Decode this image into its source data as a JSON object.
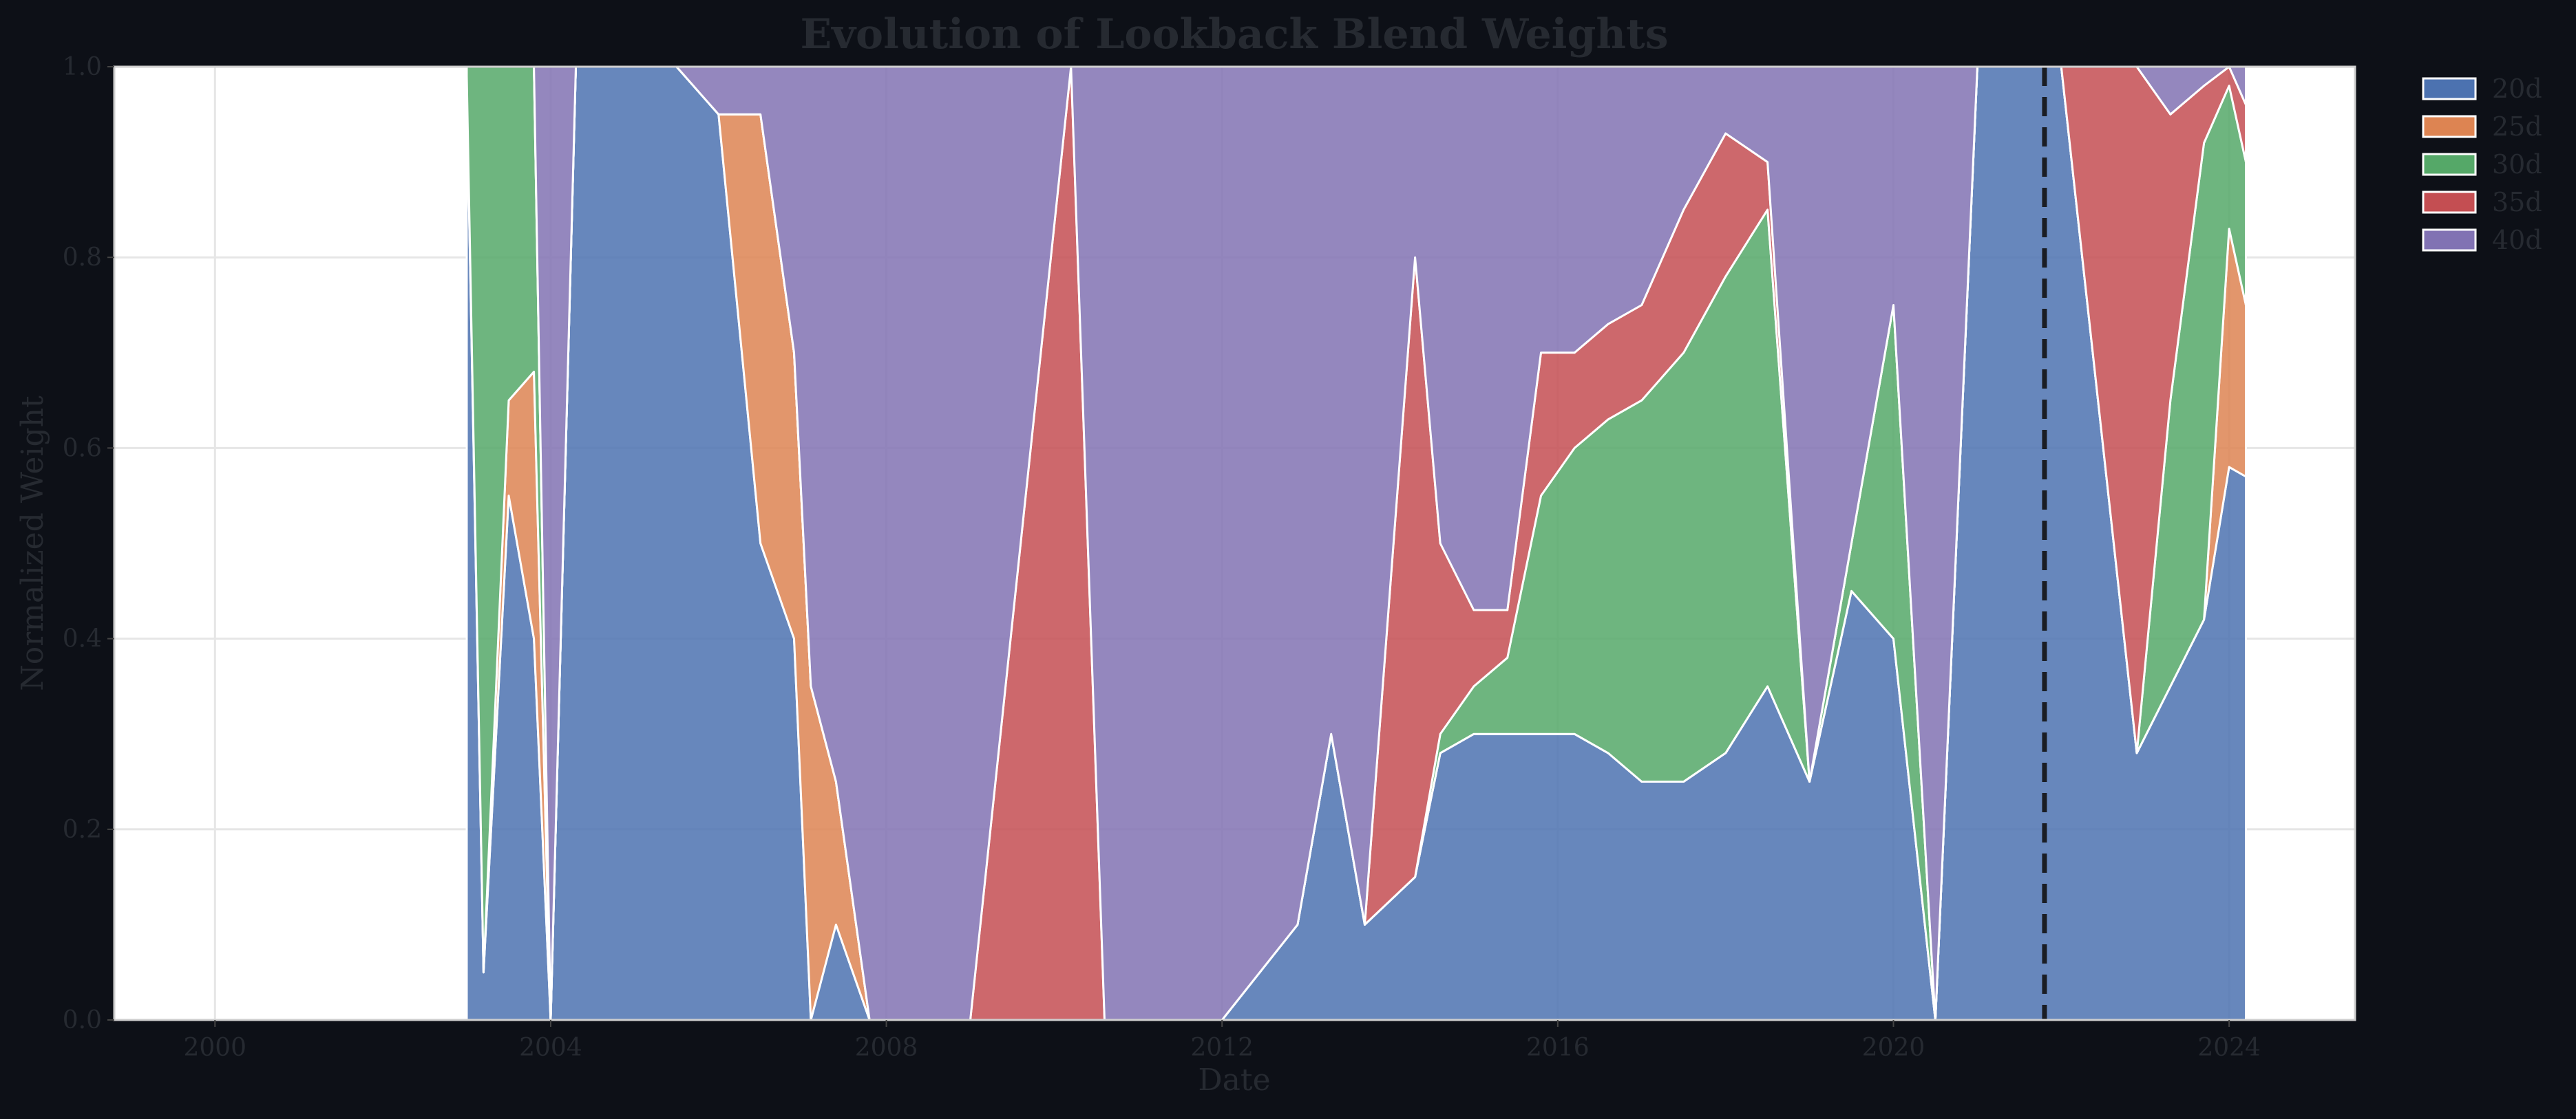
{
  "chart_data": {
    "type": "area",
    "title": "Evolution of Lookback Blend Weights",
    "xlabel": "Date",
    "ylabel": "Normalized Weight",
    "xlim": [
      1998.8,
      2025.5
    ],
    "ylim": [
      0,
      1.0
    ],
    "x_ticks": [
      2000,
      2004,
      2008,
      2012,
      2016,
      2020,
      2024
    ],
    "x_tick_labels": [
      "2000",
      "2004",
      "2008",
      "2012",
      "2016",
      "2020",
      "2024"
    ],
    "y_ticks": [
      0.0,
      0.2,
      0.4,
      0.6,
      0.8,
      1.0
    ],
    "y_tick_labels": [
      "0.0",
      "0.2",
      "0.4",
      "0.6",
      "0.8",
      "1.0"
    ],
    "grid": true,
    "legend_position": "outside-top-right",
    "stacked": true,
    "marker_line_x": 2021.8,
    "x": [
      2003.0,
      2003.2,
      2003.5,
      2003.8,
      2004.0,
      2004.3,
      2004.6,
      2005.0,
      2005.5,
      2006.0,
      2006.5,
      2006.9,
      2007.1,
      2007.4,
      2007.8,
      2008.5,
      2009.0,
      2010.2,
      2010.6,
      2011.0,
      2012.0,
      2012.9,
      2013.3,
      2013.7,
      2014.3,
      2014.6,
      2015.0,
      2015.4,
      2015.8,
      2016.2,
      2016.6,
      2017.0,
      2017.5,
      2018.0,
      2018.5,
      2019.0,
      2019.5,
      2020.0,
      2020.5,
      2021.0,
      2021.5,
      2022.0,
      2022.5,
      2022.9,
      2023.3,
      2023.7,
      2024.0,
      2024.2
    ],
    "series": [
      {
        "name": "20d",
        "color": "#4c72b0",
        "values": [
          0.98,
          0.05,
          0.55,
          0.4,
          0.0,
          1.0,
          1.0,
          1.0,
          1.0,
          0.95,
          0.5,
          0.4,
          0.0,
          0.1,
          0.0,
          0.0,
          0.0,
          0.0,
          0.0,
          0.0,
          0.0,
          0.1,
          0.3,
          0.1,
          0.15,
          0.28,
          0.3,
          0.3,
          0.3,
          0.3,
          0.28,
          0.25,
          0.25,
          0.28,
          0.35,
          0.25,
          0.45,
          0.4,
          0.0,
          1.0,
          1.0,
          1.0,
          0.6,
          0.28,
          0.35,
          0.42,
          0.58,
          0.57
        ]
      },
      {
        "name": "25d",
        "color": "#dd8452",
        "values": [
          0.01,
          0.0,
          0.1,
          0.28,
          0.0,
          0.0,
          0.0,
          0.0,
          0.0,
          0.0,
          0.45,
          0.3,
          0.35,
          0.15,
          0.0,
          0.0,
          0.0,
          0.0,
          0.0,
          0.0,
          0.0,
          0.0,
          0.0,
          0.0,
          0.0,
          0.0,
          0.0,
          0.0,
          0.0,
          0.0,
          0.0,
          0.0,
          0.0,
          0.0,
          0.0,
          0.0,
          0.0,
          0.0,
          0.0,
          0.0,
          0.0,
          0.0,
          0.0,
          0.0,
          0.0,
          0.0,
          0.25,
          0.18
        ]
      },
      {
        "name": "30d",
        "color": "#55a868",
        "values": [
          0.01,
          0.95,
          0.35,
          0.32,
          0.0,
          0.0,
          0.0,
          0.0,
          0.0,
          0.0,
          0.0,
          0.0,
          0.0,
          0.0,
          0.0,
          0.0,
          0.0,
          0.0,
          0.0,
          0.0,
          0.0,
          0.0,
          0.0,
          0.0,
          0.0,
          0.02,
          0.05,
          0.08,
          0.25,
          0.3,
          0.35,
          0.4,
          0.45,
          0.5,
          0.5,
          0.0,
          0.05,
          0.35,
          0.0,
          0.0,
          0.0,
          0.0,
          0.0,
          0.0,
          0.3,
          0.5,
          0.15,
          0.15
        ]
      },
      {
        "name": "35d",
        "color": "#c44e52",
        "values": [
          0.0,
          0.0,
          0.0,
          0.0,
          0.0,
          0.0,
          0.0,
          0.0,
          0.0,
          0.0,
          0.0,
          0.0,
          0.0,
          0.0,
          0.0,
          0.0,
          0.0,
          1.0,
          0.0,
          0.0,
          0.0,
          0.0,
          0.0,
          0.0,
          0.65,
          0.2,
          0.08,
          0.05,
          0.15,
          0.1,
          0.1,
          0.1,
          0.15,
          0.15,
          0.05,
          0.0,
          0.0,
          0.0,
          0.0,
          0.0,
          0.0,
          0.0,
          0.4,
          0.72,
          0.3,
          0.06,
          0.02,
          0.06
        ]
      },
      {
        "name": "40d",
        "color": "#8172b3",
        "values": [
          0.0,
          0.0,
          0.0,
          0.0,
          1.0,
          0.0,
          0.0,
          0.0,
          0.0,
          0.05,
          0.05,
          0.3,
          0.65,
          0.75,
          1.0,
          1.0,
          1.0,
          0.0,
          1.0,
          1.0,
          1.0,
          0.9,
          0.7,
          0.9,
          0.2,
          0.5,
          0.57,
          0.57,
          0.3,
          0.3,
          0.27,
          0.25,
          0.15,
          0.07,
          0.1,
          0.75,
          0.5,
          0.25,
          1.0,
          0.0,
          0.0,
          0.0,
          0.0,
          0.0,
          0.05,
          0.02,
          0.0,
          0.04
        ]
      }
    ]
  }
}
